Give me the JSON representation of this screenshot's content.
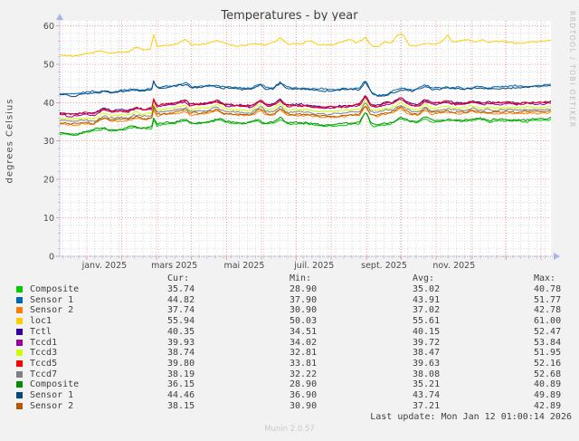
{
  "header": {
    "title": "Temperatures - by year"
  },
  "watermark": "RRDTOOL / TOBI OETIKER",
  "footer": {
    "last_update": "Last update: Mon Jan 12 01:00:14 2026",
    "version": "Munin 2.0.57"
  },
  "chart_data": {
    "type": "line",
    "title": "Temperatures - by year",
    "ylabel": "degrees Celsius",
    "ylim": [
      0,
      60
    ],
    "y_ticks": [
      0,
      10,
      20,
      30,
      40,
      50,
      60
    ],
    "x_tick_labels": [
      "janv. 2025",
      "mars 2025",
      "mai 2025",
      "juil. 2025",
      "sept. 2025",
      "nov. 2025"
    ],
    "grid": true,
    "legend_position": "bottom",
    "legend_headers": [
      "Cur:",
      "Min:",
      "Avg:",
      "Max:"
    ],
    "colors": {
      "major_grid": "#f4a0a0",
      "minor_grid": "#dadada",
      "axis": "#9ea7e0",
      "plot_bg": "#ffffff",
      "canvas_bg": "#f2f2f2"
    },
    "series": [
      {
        "name": "Composite",
        "color": "#00CC00",
        "cur": "35.74",
        "min": "28.90",
        "avg": "35.02",
        "max": "40.78",
        "shape": "green",
        "offset": 0,
        "seed": 0,
        "noise": 0.3
      },
      {
        "name": "Sensor 1",
        "color": "#0066B3",
        "cur": "44.82",
        "min": "37.90",
        "avg": "43.91",
        "max": "51.77",
        "shape": "blue",
        "offset": 0,
        "seed": 1,
        "noise": 0.3
      },
      {
        "name": "Sensor 2",
        "color": "#FF8000",
        "cur": "37.74",
        "min": "30.90",
        "avg": "37.02",
        "max": "42.78",
        "shape": "band",
        "offset": -2.8,
        "seed": 3,
        "noise": 0.3
      },
      {
        "name": "loc1",
        "color": "#FFCC00",
        "cur": "55.94",
        "min": "50.03",
        "avg": "55.61",
        "max": "61.00",
        "shape": "yellow",
        "offset": 0,
        "seed": 4,
        "noise": 0.25
      },
      {
        "name": "Tctl",
        "color": "#330099",
        "cur": "40.35",
        "min": "34.51",
        "avg": "40.15",
        "max": "52.47",
        "shape": "band",
        "offset": 0,
        "seed": 2,
        "noise": 0.3
      },
      {
        "name": "Tccd1",
        "color": "#990099",
        "cur": "39.93",
        "min": "34.02",
        "avg": "39.72",
        "max": "53.84",
        "shape": "band",
        "offset": -0.4,
        "seed": 5,
        "noise": 0.3
      },
      {
        "name": "Tccd3",
        "color": "#CCFF00",
        "cur": "38.74",
        "min": "32.81",
        "avg": "38.47",
        "max": "51.95",
        "shape": "band",
        "offset": -1.3,
        "seed": 7,
        "noise": 0.3
      },
      {
        "name": "Tccd5",
        "color": "#FF0000",
        "cur": "39.80",
        "min": "33.81",
        "avg": "39.63",
        "max": "52.16",
        "shape": "band",
        "offset": -0.15,
        "seed": 6,
        "noise": 0.35
      },
      {
        "name": "Tccd7",
        "color": "#808080",
        "cur": "38.19",
        "min": "32.22",
        "avg": "38.08",
        "max": "52.68",
        "shape": "band",
        "offset": -1.9,
        "seed": 8,
        "noise": 0.3
      },
      {
        "name": "Composite",
        "color": "#008F00",
        "cur": "36.15",
        "min": "28.90",
        "avg": "35.21",
        "max": "40.89",
        "shape": "green",
        "offset": 0.3,
        "seed": 9,
        "noise": 0.3
      },
      {
        "name": "Sensor 1",
        "color": "#00487D",
        "cur": "44.46",
        "min": "36.90",
        "avg": "43.74",
        "max": "49.89",
        "shape": "blue",
        "offset": -0.35,
        "seed": 10,
        "noise": 0.3
      },
      {
        "name": "Sensor 2",
        "color": "#B35A00",
        "cur": "38.15",
        "min": "30.90",
        "avg": "37.21",
        "max": "42.89",
        "shape": "band",
        "offset": -2.45,
        "seed": 11,
        "noise": 0.3
      }
    ],
    "shapes": {
      "band": [
        [
          0,
          37.2
        ],
        [
          0.03,
          36.9
        ],
        [
          0.05,
          37.4
        ],
        [
          0.07,
          37.1
        ],
        [
          0.09,
          38.6
        ],
        [
          0.105,
          37.8
        ],
        [
          0.125,
          38.1
        ],
        [
          0.14,
          38.0
        ],
        [
          0.155,
          38.9
        ],
        [
          0.17,
          38.3
        ],
        [
          0.188,
          38.6
        ],
        [
          0.1915,
          41.2
        ],
        [
          0.197,
          39.3
        ],
        [
          0.215,
          39.7
        ],
        [
          0.235,
          39.9
        ],
        [
          0.256,
          40.7
        ],
        [
          0.265,
          39.6
        ],
        [
          0.285,
          39.8
        ],
        [
          0.3,
          39.9
        ],
        [
          0.32,
          40.7
        ],
        [
          0.335,
          39.7
        ],
        [
          0.355,
          39.5
        ],
        [
          0.375,
          39.4
        ],
        [
          0.39,
          39.3
        ],
        [
          0.408,
          40.9
        ],
        [
          0.42,
          39.5
        ],
        [
          0.435,
          39.6
        ],
        [
          0.449,
          41.0
        ],
        [
          0.462,
          39.4
        ],
        [
          0.48,
          39.5
        ],
        [
          0.5,
          39.5
        ],
        [
          0.52,
          39.1
        ],
        [
          0.545,
          38.9
        ],
        [
          0.565,
          39.0
        ],
        [
          0.59,
          39.4
        ],
        [
          0.61,
          39.5
        ],
        [
          0.6225,
          42.0
        ],
        [
          0.632,
          39.6
        ],
        [
          0.645,
          39.2
        ],
        [
          0.66,
          39.9
        ],
        [
          0.678,
          40.1
        ],
        [
          0.694,
          41.3
        ],
        [
          0.705,
          40.3
        ],
        [
          0.718,
          39.5
        ],
        [
          0.73,
          39.4
        ],
        [
          0.744,
          41.0
        ],
        [
          0.757,
          39.9
        ],
        [
          0.775,
          40.1
        ],
        [
          0.79,
          40.4
        ],
        [
          0.805,
          39.9
        ],
        [
          0.825,
          40.0
        ],
        [
          0.84,
          40.5
        ],
        [
          0.855,
          40.0
        ],
        [
          0.875,
          40.1
        ],
        [
          0.895,
          39.9
        ],
        [
          0.915,
          40.1
        ],
        [
          0.935,
          39.9
        ],
        [
          0.955,
          40.1
        ],
        [
          0.975,
          40.0
        ],
        [
          1,
          40.3
        ]
      ],
      "blue": [
        [
          0,
          42.4
        ],
        [
          0.03,
          42.1
        ],
        [
          0.05,
          42.6
        ],
        [
          0.07,
          42.9
        ],
        [
          0.09,
          43.1
        ],
        [
          0.11,
          42.8
        ],
        [
          0.125,
          43.3
        ],
        [
          0.145,
          43.6
        ],
        [
          0.165,
          43.3
        ],
        [
          0.188,
          43.8
        ],
        [
          0.1915,
          46.0
        ],
        [
          0.197,
          44.1
        ],
        [
          0.215,
          44.3
        ],
        [
          0.235,
          44.5
        ],
        [
          0.256,
          45.1
        ],
        [
          0.27,
          44.2
        ],
        [
          0.29,
          44.3
        ],
        [
          0.31,
          44.6
        ],
        [
          0.33,
          44.2
        ],
        [
          0.35,
          44.0
        ],
        [
          0.37,
          43.9
        ],
        [
          0.39,
          43.8
        ],
        [
          0.408,
          44.9
        ],
        [
          0.42,
          43.9
        ],
        [
          0.435,
          44.0
        ],
        [
          0.449,
          45.3
        ],
        [
          0.465,
          43.9
        ],
        [
          0.49,
          43.8
        ],
        [
          0.515,
          43.7
        ],
        [
          0.54,
          43.5
        ],
        [
          0.565,
          43.5
        ],
        [
          0.59,
          43.7
        ],
        [
          0.61,
          43.8
        ],
        [
          0.6225,
          45.7
        ],
        [
          0.635,
          42.6
        ],
        [
          0.648,
          41.9
        ],
        [
          0.661,
          42.0
        ],
        [
          0.675,
          42.8
        ],
        [
          0.69,
          43.5
        ],
        [
          0.705,
          43.6
        ],
        [
          0.72,
          43.2
        ],
        [
          0.744,
          44.7
        ],
        [
          0.76,
          43.8
        ],
        [
          0.78,
          43.9
        ],
        [
          0.8,
          44.1
        ],
        [
          0.82,
          43.7
        ],
        [
          0.84,
          43.9
        ],
        [
          0.855,
          44.2
        ],
        [
          0.875,
          43.9
        ],
        [
          0.9,
          44.1
        ],
        [
          0.925,
          44.3
        ],
        [
          0.95,
          44.3
        ],
        [
          0.975,
          44.5
        ],
        [
          1,
          44.7
        ]
      ],
      "yellow": [
        [
          0,
          52.4
        ],
        [
          0.025,
          52.1
        ],
        [
          0.05,
          52.6
        ],
        [
          0.075,
          53.3
        ],
        [
          0.09,
          53.6
        ],
        [
          0.1,
          52.9
        ],
        [
          0.12,
          53.0
        ],
        [
          0.14,
          53.2
        ],
        [
          0.155,
          54.4
        ],
        [
          0.17,
          53.7
        ],
        [
          0.185,
          54.0
        ],
        [
          0.1915,
          57.9
        ],
        [
          0.198,
          54.7
        ],
        [
          0.215,
          54.9
        ],
        [
          0.235,
          55.0
        ],
        [
          0.256,
          56.5
        ],
        [
          0.268,
          54.9
        ],
        [
          0.29,
          55.2
        ],
        [
          0.31,
          55.6
        ],
        [
          0.325,
          56.0
        ],
        [
          0.34,
          55.4
        ],
        [
          0.36,
          54.9
        ],
        [
          0.38,
          55.0
        ],
        [
          0.4,
          55.5
        ],
        [
          0.42,
          55.1
        ],
        [
          0.435,
          55.6
        ],
        [
          0.449,
          56.8
        ],
        [
          0.465,
          55.2
        ],
        [
          0.49,
          55.4
        ],
        [
          0.51,
          56.0
        ],
        [
          0.53,
          55.2
        ],
        [
          0.55,
          55.1
        ],
        [
          0.57,
          55.6
        ],
        [
          0.59,
          56.6
        ],
        [
          0.605,
          55.4
        ],
        [
          0.6225,
          57.0
        ],
        [
          0.635,
          54.8
        ],
        [
          0.648,
          54.5
        ],
        [
          0.661,
          55.9
        ],
        [
          0.675,
          55.4
        ],
        [
          0.688,
          57.8
        ],
        [
          0.7,
          57.6
        ],
        [
          0.712,
          55.0
        ],
        [
          0.727,
          54.6
        ],
        [
          0.744,
          55.5
        ],
        [
          0.76,
          55.2
        ],
        [
          0.775,
          55.5
        ],
        [
          0.79,
          57.8
        ],
        [
          0.8,
          55.7
        ],
        [
          0.815,
          56.0
        ],
        [
          0.83,
          56.5
        ],
        [
          0.845,
          55.8
        ],
        [
          0.86,
          56.4
        ],
        [
          0.875,
          55.7
        ],
        [
          0.895,
          55.9
        ],
        [
          0.915,
          55.7
        ],
        [
          0.935,
          55.4
        ],
        [
          0.955,
          55.8
        ],
        [
          0.975,
          55.9
        ],
        [
          1,
          56.1
        ]
      ],
      "green": [
        [
          0,
          31.8
        ],
        [
          0.025,
          31.5
        ],
        [
          0.05,
          32.1
        ],
        [
          0.075,
          32.9
        ],
        [
          0.09,
          33.1
        ],
        [
          0.105,
          32.5
        ],
        [
          0.125,
          32.8
        ],
        [
          0.145,
          33.5
        ],
        [
          0.165,
          33.1
        ],
        [
          0.188,
          33.4
        ],
        [
          0.1915,
          35.8
        ],
        [
          0.198,
          34.1
        ],
        [
          0.215,
          34.4
        ],
        [
          0.235,
          34.6
        ],
        [
          0.256,
          35.4
        ],
        [
          0.27,
          34.4
        ],
        [
          0.29,
          34.6
        ],
        [
          0.31,
          35.0
        ],
        [
          0.325,
          35.5
        ],
        [
          0.34,
          34.8
        ],
        [
          0.36,
          34.6
        ],
        [
          0.38,
          34.5
        ],
        [
          0.4,
          35.2
        ],
        [
          0.415,
          34.6
        ],
        [
          0.435,
          34.7
        ],
        [
          0.449,
          35.8
        ],
        [
          0.465,
          34.4
        ],
        [
          0.49,
          34.6
        ],
        [
          0.515,
          34.2
        ],
        [
          0.54,
          33.9
        ],
        [
          0.565,
          34.0
        ],
        [
          0.59,
          34.4
        ],
        [
          0.61,
          34.5
        ],
        [
          0.6225,
          37.4
        ],
        [
          0.635,
          34.1
        ],
        [
          0.648,
          33.8
        ],
        [
          0.661,
          34.2
        ],
        [
          0.678,
          34.5
        ],
        [
          0.694,
          35.9
        ],
        [
          0.71,
          35.2
        ],
        [
          0.725,
          34.7
        ],
        [
          0.744,
          35.9
        ],
        [
          0.76,
          34.9
        ],
        [
          0.78,
          35.2
        ],
        [
          0.8,
          35.4
        ],
        [
          0.82,
          35.0
        ],
        [
          0.84,
          35.3
        ],
        [
          0.855,
          35.6
        ],
        [
          0.875,
          35.1
        ],
        [
          0.9,
          35.3
        ],
        [
          0.925,
          35.2
        ],
        [
          0.95,
          35.1
        ],
        [
          0.975,
          35.4
        ],
        [
          1,
          35.7
        ]
      ]
    }
  }
}
